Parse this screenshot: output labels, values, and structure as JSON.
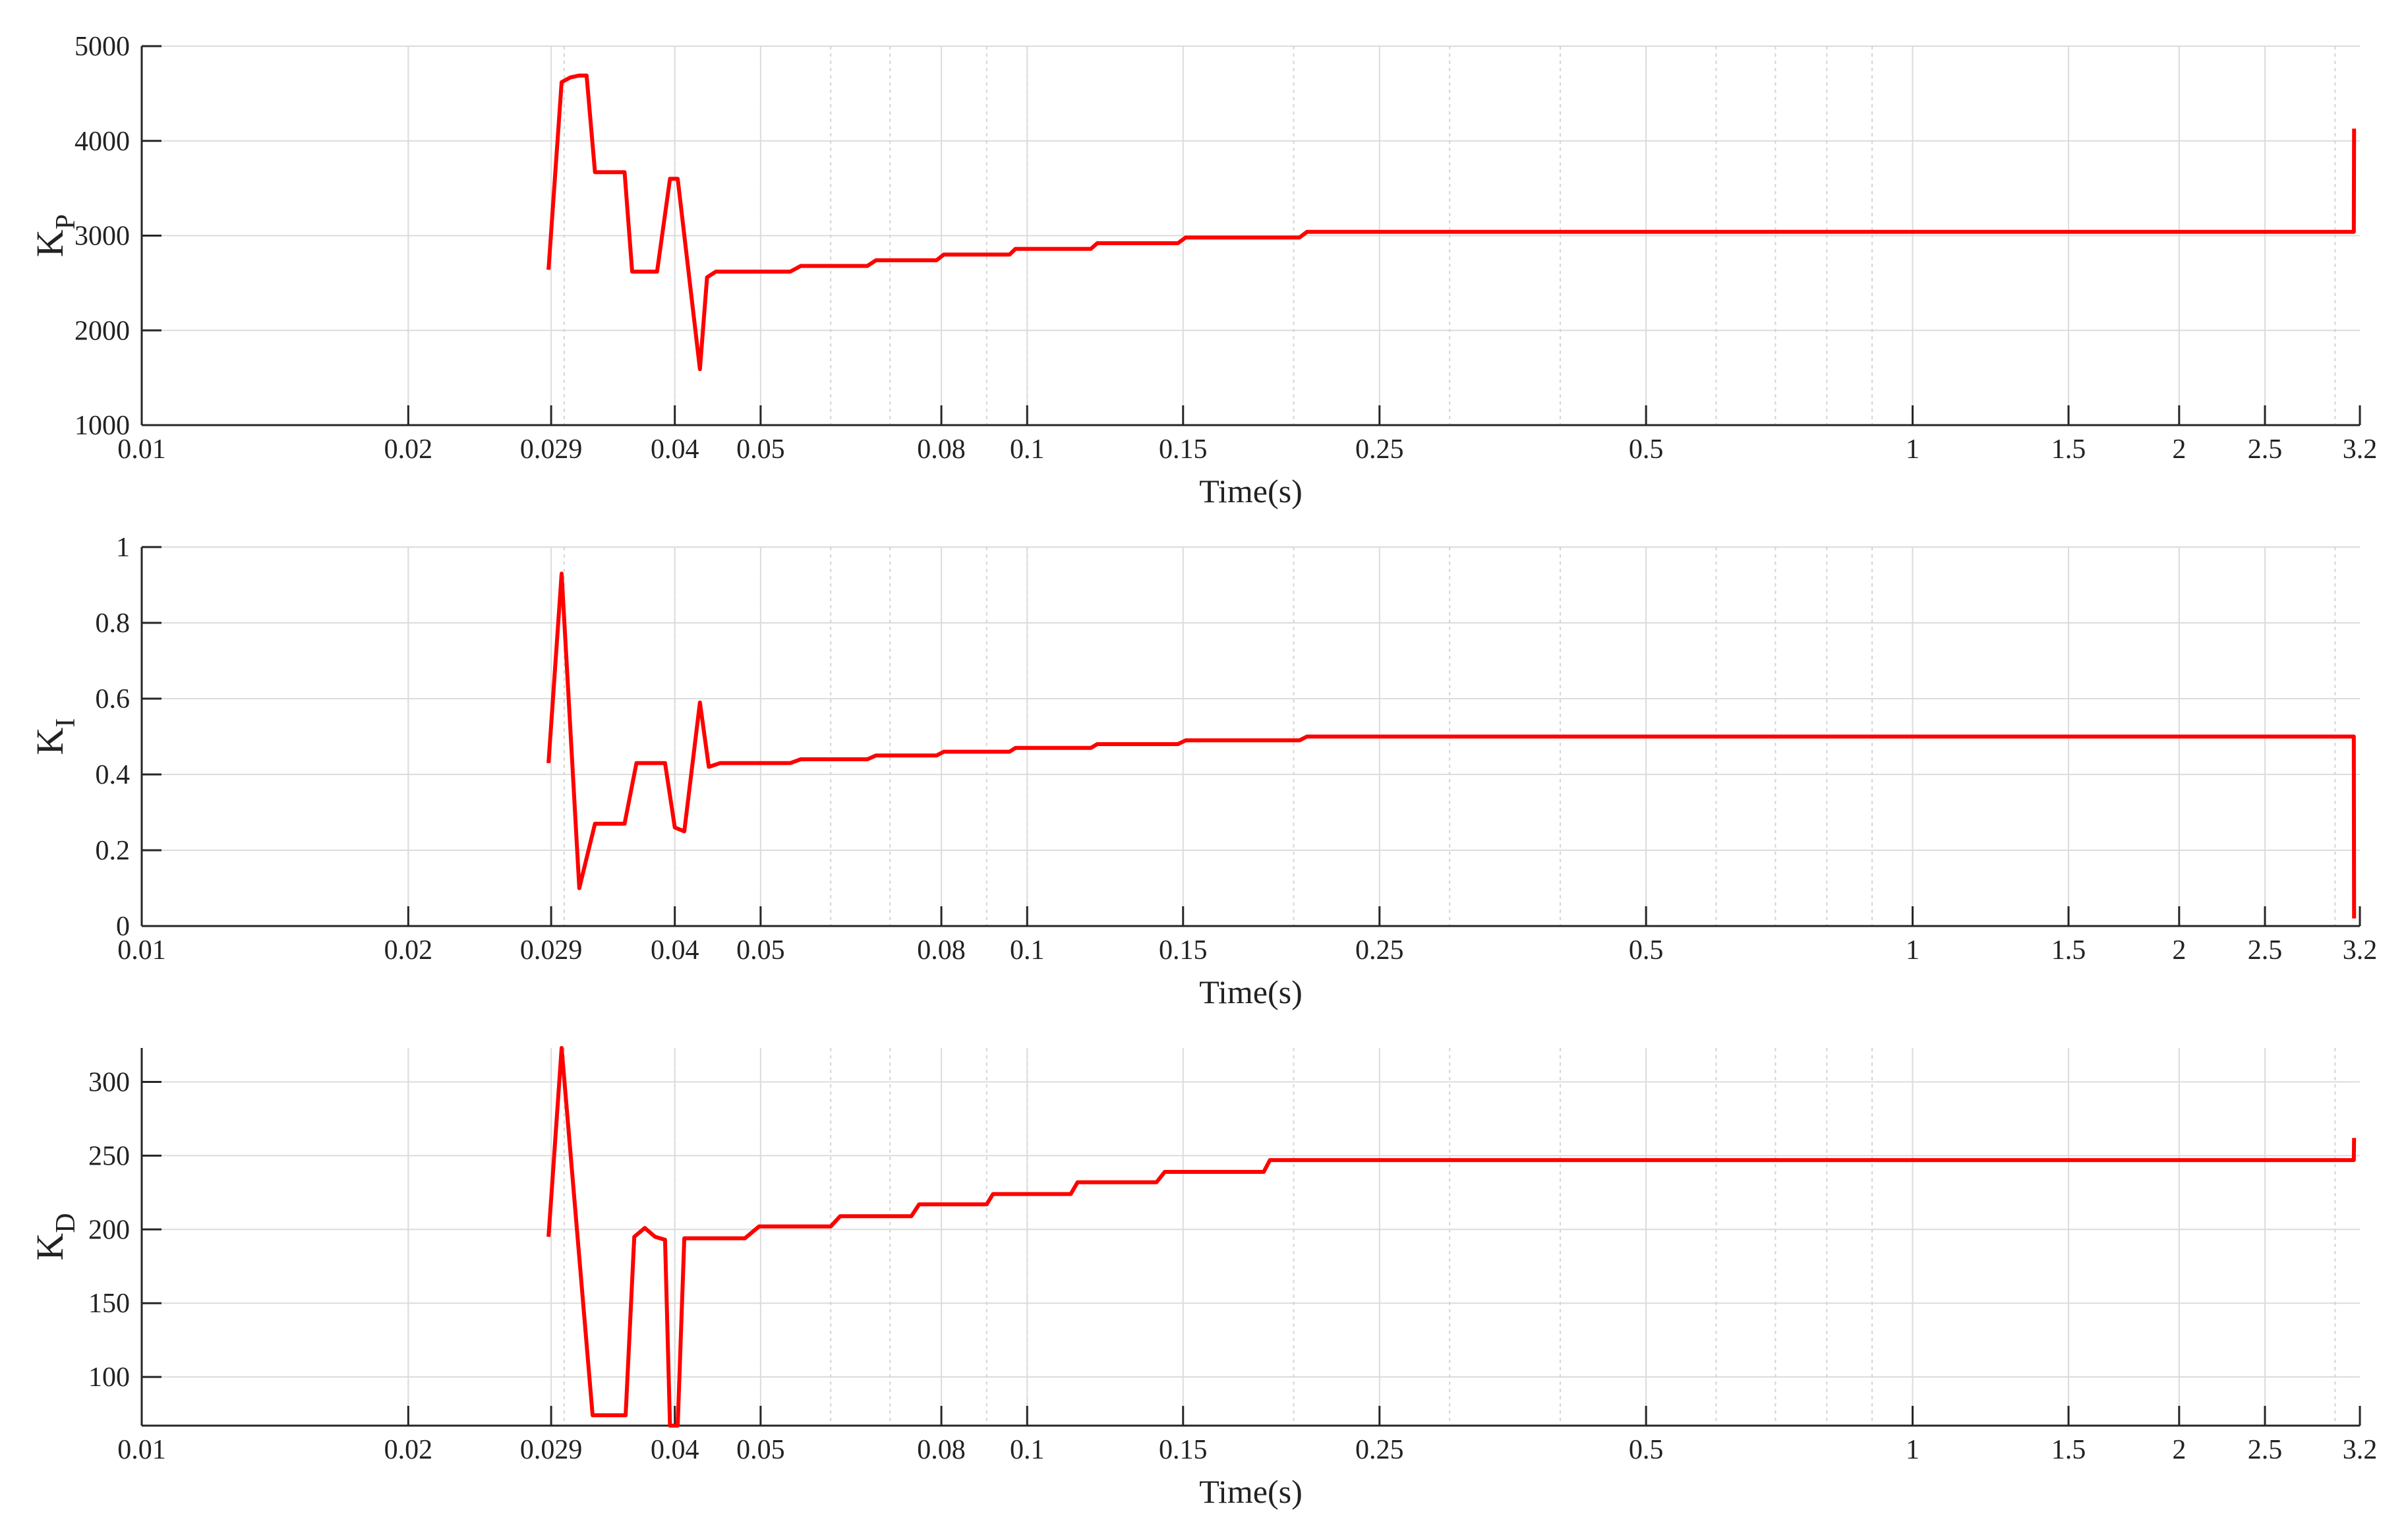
{
  "chart_data": [
    {
      "type": "line",
      "ylabel_main": "K",
      "ylabel_sub": "P",
      "xlabel": "Time(s)",
      "xscale": "log",
      "xlim": [
        0.01,
        3.2
      ],
      "ylim": [
        1000,
        5000
      ],
      "xticks": [
        0.01,
        0.02,
        0.029,
        0.04,
        0.05,
        0.08,
        0.1,
        0.15,
        0.25,
        0.5,
        1,
        1.5,
        2,
        2.5,
        3.2
      ],
      "xtick_labels": [
        "0.01",
        "0.02",
        "0.029",
        "0.04",
        "0.05",
        "0.08",
        "0.1",
        "0.15",
        "0.25",
        "0.5",
        "1",
        "1.5",
        "2",
        "2.5",
        "3.2"
      ],
      "yticks": [
        1000,
        2000,
        3000,
        4000,
        5000
      ],
      "ytick_labels": [
        "1000",
        "2000",
        "3000",
        "4000",
        "5000"
      ],
      "grid": true,
      "color": "#ff0000",
      "x": [
        0.0288,
        0.0298,
        0.0305,
        0.0312,
        0.0318,
        0.0325,
        0.0342,
        0.0351,
        0.0358,
        0.0375,
        0.0382,
        0.0395,
        0.0403,
        0.0427,
        0.0435,
        0.0445,
        0.0465,
        0.054,
        0.0555,
        0.066,
        0.0675,
        0.079,
        0.0805,
        0.0955,
        0.097,
        0.118,
        0.12,
        0.148,
        0.151,
        0.203,
        0.207,
        3.15,
        3.152
      ],
      "y": [
        2640,
        4620,
        4670,
        4690,
        4690,
        3670,
        3670,
        3670,
        2620,
        2620,
        2620,
        3600,
        3600,
        1590,
        2560,
        2620,
        2620,
        2620,
        2680,
        2680,
        2740,
        2740,
        2800,
        2800,
        2860,
        2860,
        2920,
        2920,
        2980,
        2980,
        3040,
        3040,
        4130
      ]
    },
    {
      "type": "line",
      "ylabel_main": "K",
      "ylabel_sub": "I",
      "xlabel": "Time(s)",
      "xscale": "log",
      "xlim": [
        0.01,
        3.2
      ],
      "ylim": [
        0,
        1
      ],
      "xticks": [
        0.01,
        0.02,
        0.029,
        0.04,
        0.05,
        0.08,
        0.1,
        0.15,
        0.25,
        0.5,
        1,
        1.5,
        2,
        2.5,
        3.2
      ],
      "xtick_labels": [
        "0.01",
        "0.02",
        "0.029",
        "0.04",
        "0.05",
        "0.08",
        "0.1",
        "0.15",
        "0.25",
        "0.5",
        "1",
        "1.5",
        "2",
        "2.5",
        "3.2"
      ],
      "yticks": [
        0,
        0.2,
        0.4,
        0.6,
        0.8,
        1
      ],
      "ytick_labels": [
        "0",
        "0.2",
        "0.4",
        "0.6",
        "0.8",
        "1"
      ],
      "grid": true,
      "color": "#ff0000",
      "x": [
        0.0288,
        0.0298,
        0.0312,
        0.0325,
        0.0342,
        0.0351,
        0.0362,
        0.0375,
        0.039,
        0.04,
        0.041,
        0.0427,
        0.0437,
        0.045,
        0.047,
        0.054,
        0.0555,
        0.066,
        0.0675,
        0.079,
        0.0805,
        0.0955,
        0.097,
        0.118,
        0.12,
        0.148,
        0.151,
        0.203,
        0.207,
        3.15,
        3.152
      ],
      "y": [
        0.43,
        0.93,
        0.1,
        0.27,
        0.27,
        0.27,
        0.43,
        0.43,
        0.43,
        0.26,
        0.25,
        0.59,
        0.42,
        0.43,
        0.43,
        0.43,
        0.44,
        0.44,
        0.45,
        0.45,
        0.46,
        0.46,
        0.47,
        0.47,
        0.48,
        0.48,
        0.49,
        0.49,
        0.5,
        0.5,
        0.02
      ]
    },
    {
      "type": "line",
      "ylabel_main": "K",
      "ylabel_sub": "D",
      "xlabel": "Time(s)",
      "xscale": "log",
      "xlim": [
        0.01,
        3.2
      ],
      "ylim": [
        67,
        323
      ],
      "xticks": [
        0.01,
        0.02,
        0.029,
        0.04,
        0.05,
        0.08,
        0.1,
        0.15,
        0.25,
        0.5,
        1,
        1.5,
        2,
        2.5,
        3.2
      ],
      "xtick_labels": [
        "0.01",
        "0.02",
        "0.029",
        "0.04",
        "0.05",
        "0.08",
        "0.1",
        "0.15",
        "0.25",
        "0.5",
        "1",
        "1.5",
        "2",
        "2.5",
        "3.2"
      ],
      "yticks": [
        100,
        150,
        200,
        250,
        300
      ],
      "ytick_labels": [
        "100",
        "150",
        "200",
        "250",
        "300"
      ],
      "grid": true,
      "color": "#ff0000",
      "x": [
        0.0288,
        0.0298,
        0.0323,
        0.0342,
        0.0352,
        0.036,
        0.037,
        0.038,
        0.039,
        0.0395,
        0.0403,
        0.041,
        0.042,
        0.048,
        0.0498,
        0.06,
        0.0615,
        0.074,
        0.0755,
        0.09,
        0.0915,
        0.112,
        0.114,
        0.14,
        0.143,
        0.185,
        0.188,
        3.15,
        3.152
      ],
      "y": [
        195,
        323,
        74,
        74,
        74,
        195,
        201,
        195,
        193,
        67,
        67,
        194,
        194,
        194,
        202,
        202,
        209,
        209,
        217,
        217,
        224,
        224,
        232,
        232,
        239,
        239,
        247,
        247,
        262
      ]
    }
  ]
}
